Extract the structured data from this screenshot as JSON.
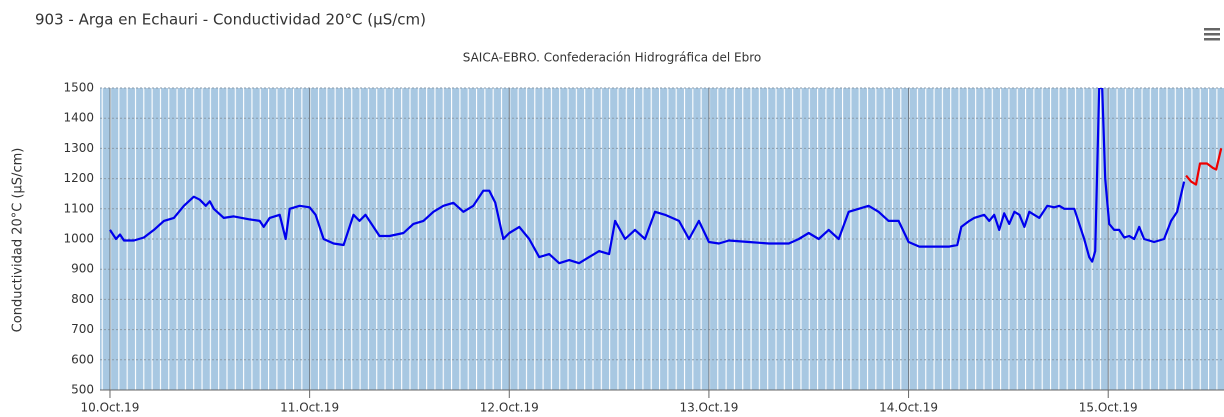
{
  "chart_data": {
    "type": "line",
    "title": "903 - Arga en Echauri - Conductividad 20°C (µS/cm)",
    "subtitle": "SAICA-EBRO. Confederación Hidrográfica del Ebro",
    "y_label": "Conductividad 20°C (µS/cm)",
    "xlim": [
      -0.05,
      5.58
    ],
    "xticks": [
      {
        "value": 0,
        "label": "10.Oct.19"
      },
      {
        "value": 1,
        "label": "11.Oct.19"
      },
      {
        "value": 2,
        "label": "12.Oct.19"
      },
      {
        "value": 3,
        "label": "13.Oct.19"
      },
      {
        "value": 4,
        "label": "14.Oct.19"
      },
      {
        "value": 5,
        "label": "15.Oct.19"
      }
    ],
    "ylim": [
      500,
      1500
    ],
    "yticks": [
      500,
      600,
      700,
      800,
      900,
      1000,
      1100,
      1200,
      1300,
      1400,
      1500
    ],
    "grid": true,
    "series": [
      {
        "color": "#0000ee",
        "x": [
          0,
          0.03,
          0.05,
          0.07,
          0.12,
          0.17,
          0.22,
          0.27,
          0.32,
          0.37,
          0.42,
          0.45,
          0.48,
          0.5,
          0.52,
          0.57,
          0.62,
          0.7,
          0.75,
          0.77,
          0.8,
          0.85,
          0.88,
          0.9,
          0.95,
          1,
          1.03,
          1.07,
          1.12,
          1.17,
          1.22,
          1.25,
          1.28,
          1.35,
          1.4,
          1.47,
          1.52,
          1.57,
          1.62,
          1.67,
          1.72,
          1.77,
          1.82,
          1.87,
          1.9,
          1.93,
          1.97,
          2,
          2.05,
          2.1,
          2.15,
          2.2,
          2.25,
          2.3,
          2.35,
          2.4,
          2.45,
          2.5,
          2.53,
          2.58,
          2.63,
          2.68,
          2.73,
          2.78,
          2.85,
          2.9,
          2.95,
          3,
          3.05,
          3.1,
          3.2,
          3.3,
          3.4,
          3.45,
          3.5,
          3.55,
          3.6,
          3.65,
          3.7,
          3.75,
          3.8,
          3.85,
          3.9,
          3.95,
          4,
          4.054,
          4.204,
          4.244,
          4.264,
          4.304,
          4.329,
          4.379,
          4.404,
          4.429,
          4.454,
          4.479,
          4.504,
          4.53,
          4.555,
          4.58,
          4.605,
          4.655,
          4.695,
          4.73,
          4.755,
          4.78,
          4.83,
          4.88,
          4.905,
          4.92,
          4.935,
          4.955,
          4.97,
          4.985,
          5.005,
          5.03,
          5.055,
          5.08,
          5.105,
          5.13,
          5.155,
          5.18,
          5.23,
          5.28,
          5.315,
          5.345,
          5.38
        ],
        "values": [
          1030,
          1000,
          1015,
          995,
          995,
          1005,
          1030,
          1060,
          1070,
          1110,
          1140,
          1130,
          1110,
          1125,
          1100,
          1070,
          1075,
          1065,
          1060,
          1040,
          1070,
          1080,
          1000,
          1100,
          1110,
          1105,
          1080,
          1000,
          985,
          980,
          1080,
          1060,
          1080,
          1010,
          1010,
          1020,
          1050,
          1060,
          1090,
          1110,
          1120,
          1090,
          1110,
          1160,
          1160,
          1120,
          1000,
          1020,
          1040,
          1000,
          940,
          950,
          920,
          930,
          920,
          940,
          960,
          950,
          1060,
          1000,
          1030,
          1000,
          1090,
          1080,
          1060,
          1000,
          1060,
          990,
          985,
          995,
          990,
          985,
          985,
          1000,
          1020,
          1000,
          1030,
          1000,
          1090,
          1100,
          1110,
          1090,
          1060,
          1060,
          990,
          975,
          975,
          980,
          1040,
          1060,
          1070,
          1080,
          1060,
          1080,
          1030,
          1085,
          1050,
          1090,
          1080,
          1040,
          1090,
          1070,
          1110,
          1105,
          1110,
          1100,
          1100,
          1000,
          940,
          925,
          960,
          1500,
          1500,
          1200,
          1050,
          1030,
          1030,
          1005,
          1010,
          1000,
          1040,
          1000,
          990,
          1000,
          1060,
          1090,
          1190
        ]
      },
      {
        "color": "#ee0000",
        "x": [
          5.39,
          5.415,
          5.44,
          5.46,
          5.495,
          5.525,
          5.541,
          5.566
        ],
        "values": [
          1210,
          1190,
          1180,
          1250,
          1250,
          1235,
          1230,
          1300
        ]
      }
    ]
  }
}
